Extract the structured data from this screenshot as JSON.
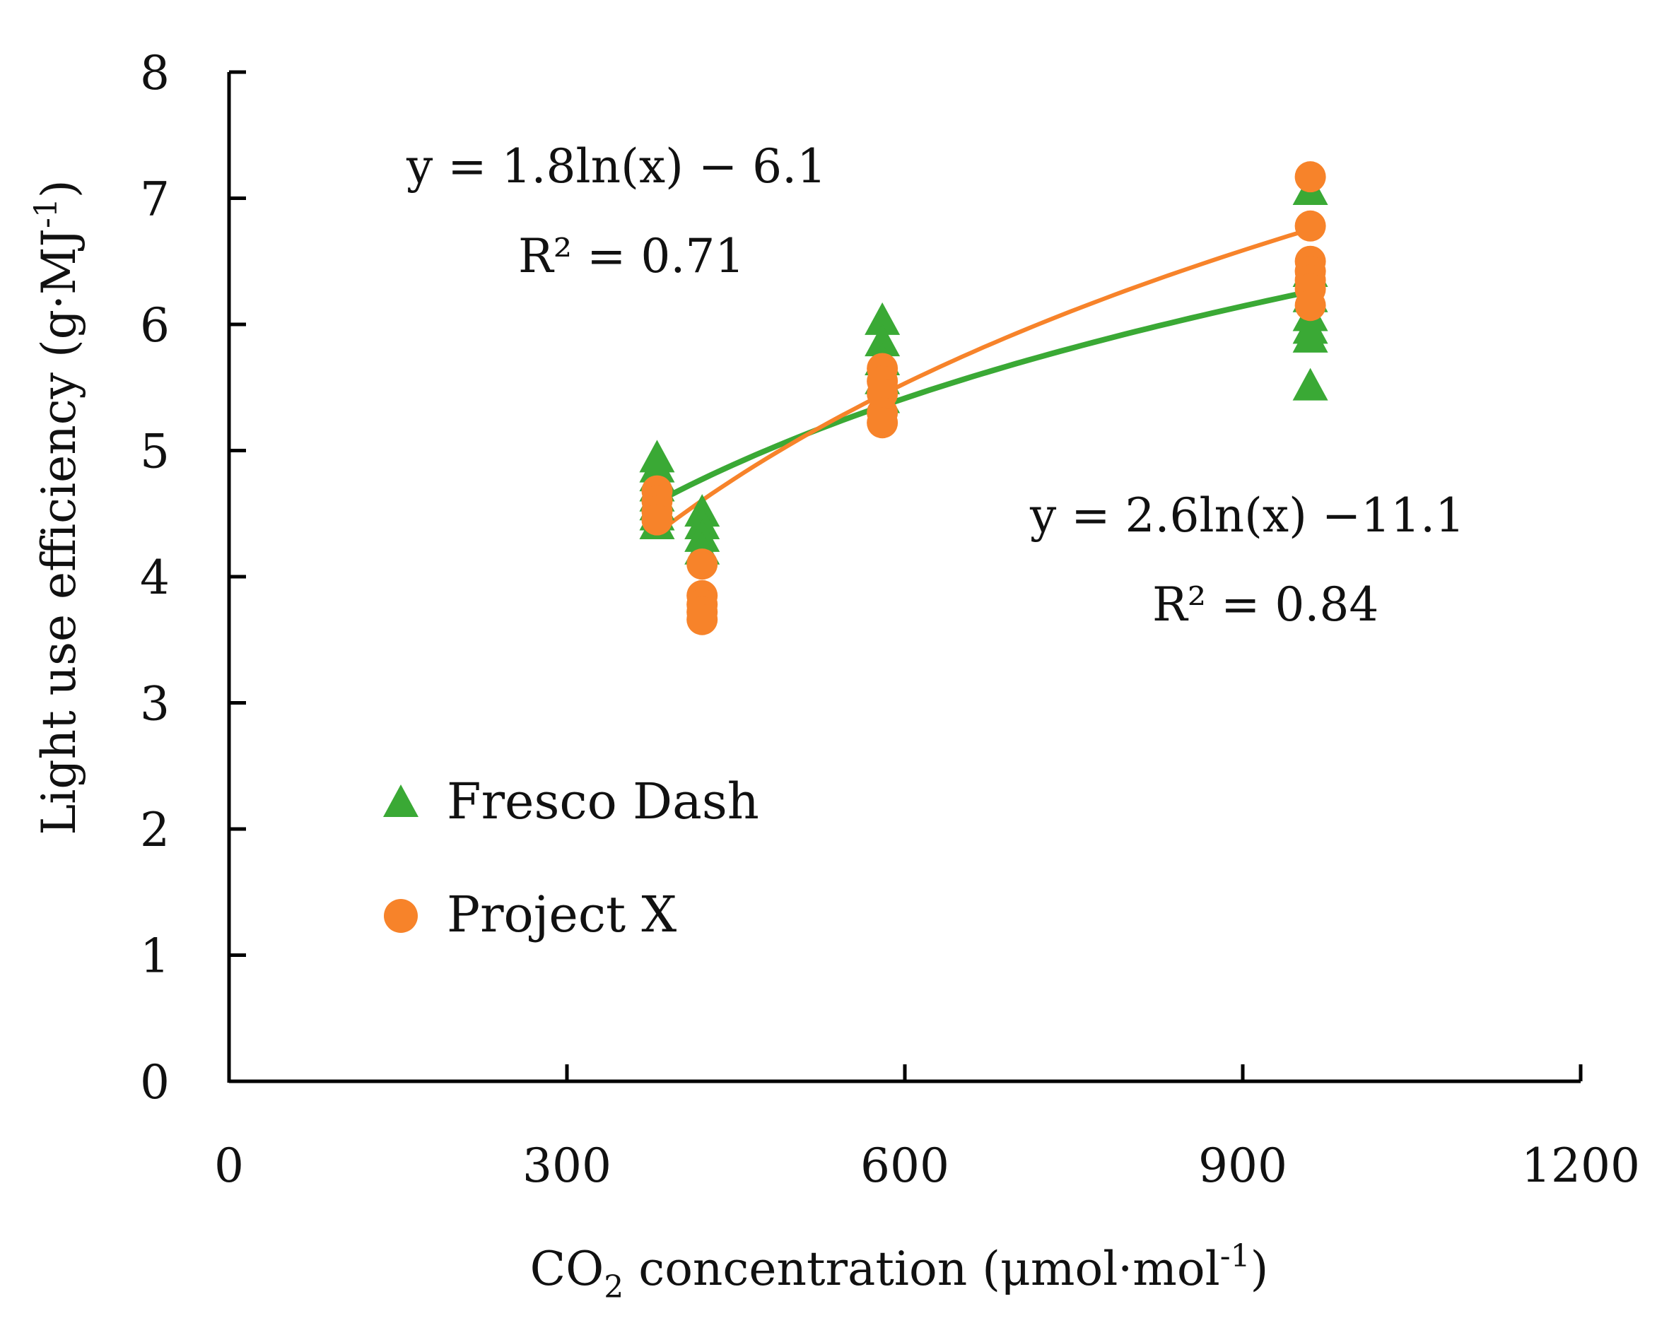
{
  "chart_data": {
    "type": "scatter",
    "title": "",
    "xlabel": {
      "prefix": "CO",
      "sub": "2",
      "middle": " concentration (μmol·mol",
      "sup": "-1",
      "suffix": ")"
    },
    "ylabel": {
      "main": "Light use efficiency (g·MJ",
      "sup": "-1",
      "suffix": ")"
    },
    "xlim": [
      0,
      1200
    ],
    "ylim": [
      0,
      8
    ],
    "xticks": [
      "0",
      "300",
      "600",
      "900",
      "1200"
    ],
    "xtick_values": [
      0,
      300,
      600,
      900,
      1200
    ],
    "yticks": [
      "0",
      "1",
      "2",
      "3",
      "4",
      "5",
      "6",
      "7",
      "8"
    ],
    "ytick_values": [
      0,
      1,
      2,
      3,
      4,
      5,
      6,
      7,
      8
    ],
    "grid": false,
    "legend_position": "left-middle",
    "series": [
      {
        "name": "Fresco Dash",
        "marker": "triangle",
        "color": "#3AA935",
        "points": [
          [
            380,
            4.93
          ],
          [
            380,
            4.85
          ],
          [
            380,
            4.78
          ],
          [
            380,
            4.7
          ],
          [
            380,
            4.62
          ],
          [
            380,
            4.55
          ],
          [
            380,
            4.47
          ],
          [
            380,
            4.4
          ],
          [
            420,
            4.5
          ],
          [
            420,
            4.4
          ],
          [
            420,
            4.3
          ],
          [
            420,
            4.2
          ],
          [
            580,
            6.02
          ],
          [
            580,
            5.85
          ],
          [
            580,
            5.7
          ],
          [
            580,
            5.55
          ],
          [
            580,
            5.4
          ],
          [
            960,
            7.05
          ],
          [
            960,
            6.4
          ],
          [
            960,
            6.2
          ],
          [
            960,
            6.05
          ],
          [
            960,
            5.95
          ],
          [
            960,
            5.88
          ],
          [
            960,
            5.5
          ]
        ],
        "trendline": {
          "a": 1.8,
          "b": -6.1,
          "x_range": [
            380,
            960
          ]
        },
        "equation": "y = 1.8ln(x) − 6.1",
        "r2_label": "R² = 0.71"
      },
      {
        "name": "Project X",
        "marker": "circle",
        "color": "#F7832A",
        "points": [
          [
            380,
            4.68
          ],
          [
            380,
            4.6
          ],
          [
            380,
            4.52
          ],
          [
            380,
            4.45
          ],
          [
            420,
            4.1
          ],
          [
            420,
            3.85
          ],
          [
            420,
            3.78
          ],
          [
            420,
            3.72
          ],
          [
            420,
            3.66
          ],
          [
            580,
            5.65
          ],
          [
            580,
            5.55
          ],
          [
            580,
            5.45
          ],
          [
            580,
            5.3
          ],
          [
            580,
            5.22
          ],
          [
            960,
            7.17
          ],
          [
            960,
            6.78
          ],
          [
            960,
            6.5
          ],
          [
            960,
            6.42
          ],
          [
            960,
            6.35
          ],
          [
            960,
            6.28
          ],
          [
            960,
            6.15
          ]
        ],
        "trendline": {
          "a": 2.6,
          "b": -11.1,
          "x_range": [
            380,
            960
          ]
        },
        "equation": "y = 2.6ln(x) −11.1",
        "r2_label": "R² = 0.84"
      }
    ]
  }
}
